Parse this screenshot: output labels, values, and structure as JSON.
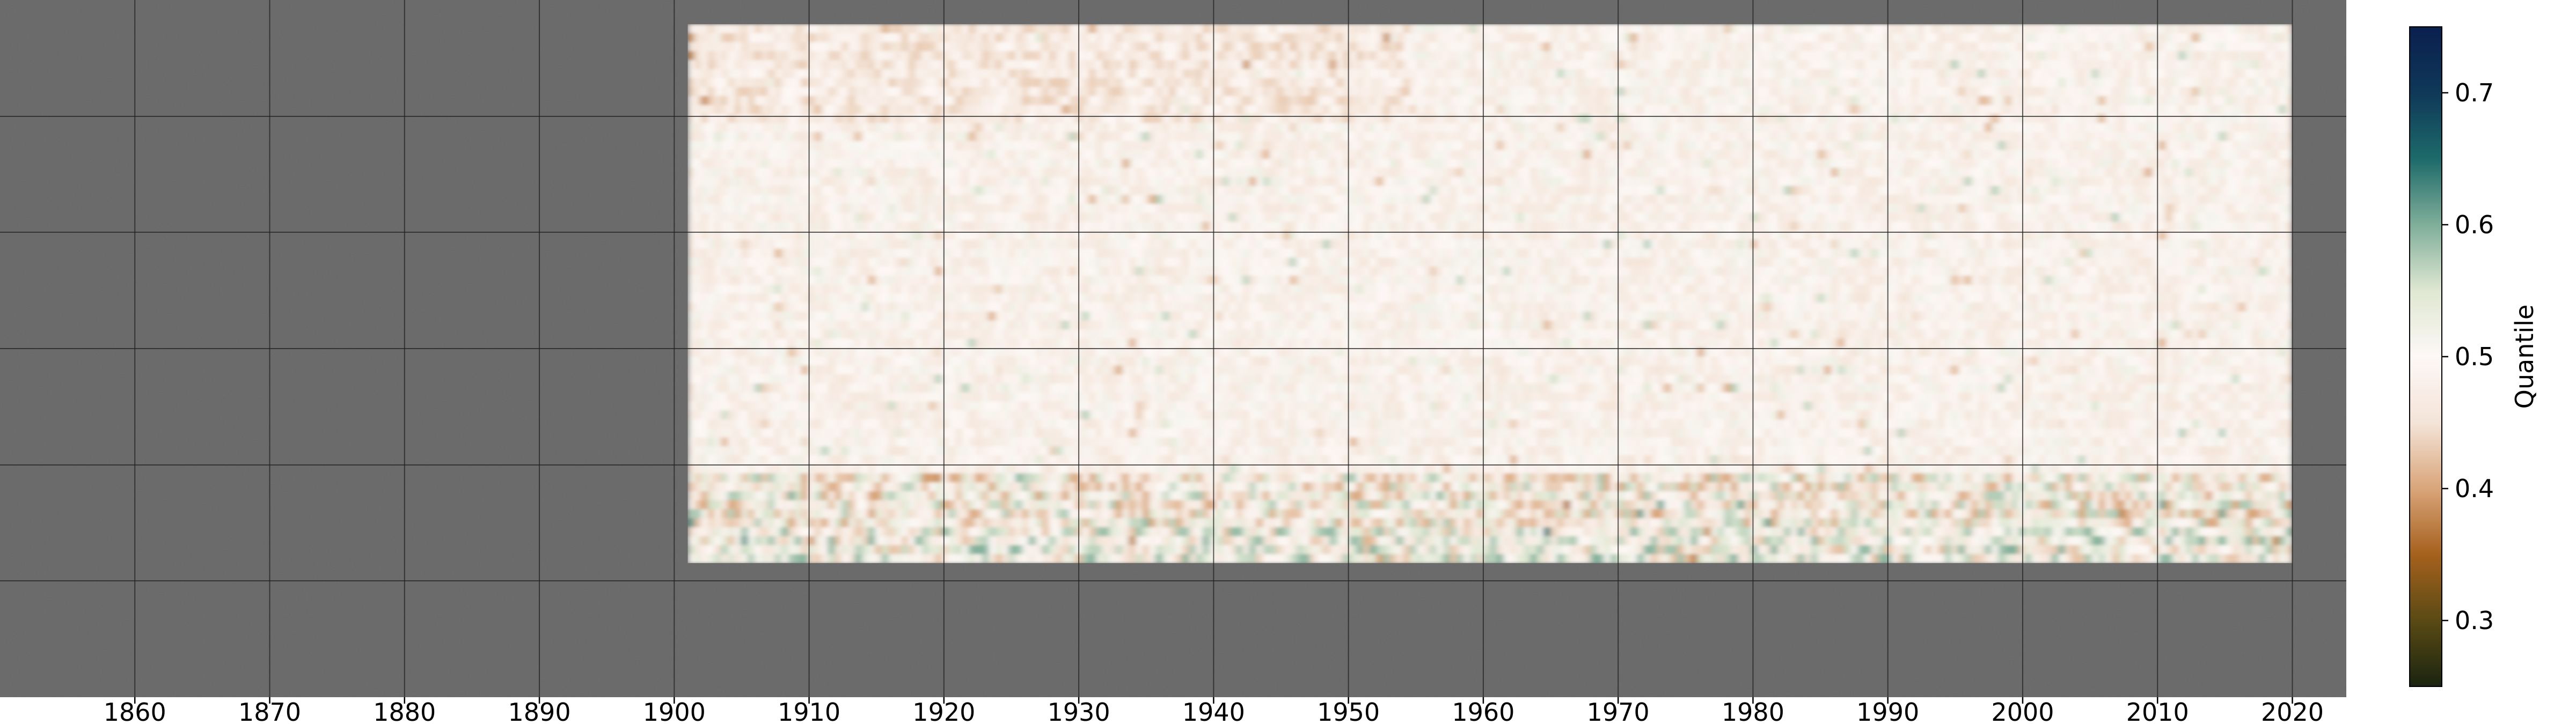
{
  "chart_data": {
    "type": "heatmap",
    "title": "",
    "xlabel": "",
    "ylabel": "",
    "x_ticks": [
      1860,
      1870,
      1880,
      1890,
      1900,
      1910,
      1920,
      1930,
      1940,
      1950,
      1960,
      1970,
      1980,
      1990,
      2000,
      2010,
      2020
    ],
    "xlim": [
      1850,
      2024
    ],
    "data_x_range": [
      1901,
      2020
    ],
    "grid": true,
    "no_data_color": "#666666",
    "colorbar": {
      "label": "Quantile",
      "range": [
        0.25,
        0.75
      ],
      "ticks": [
        0.3,
        0.4,
        0.5,
        0.6,
        0.7
      ],
      "colormap": "diverging brown-white-green",
      "colors": [
        "#1a2410",
        "#5a4a14",
        "#a5611d",
        "#d9a57a",
        "#f4e4d8",
        "#fdf8f6",
        "#dfe7d2",
        "#7fae99",
        "#1d6a6a",
        "#0f3858",
        "#0a1f4e"
      ]
    },
    "pattern_summary": {
      "low_quantile_color": "#a5611d",
      "high_quantile_color": "#1d6a6a",
      "median_color": "#fdf8f6"
    }
  }
}
